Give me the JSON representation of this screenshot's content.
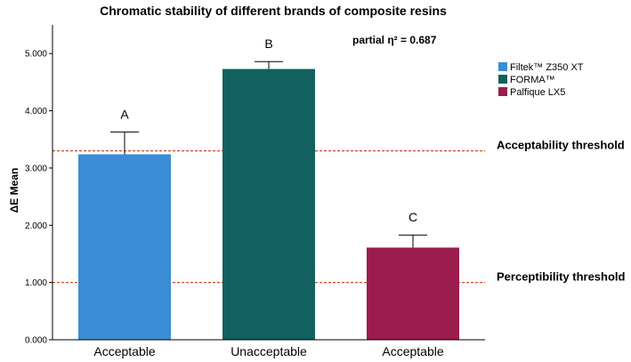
{
  "chart_data": {
    "type": "bar",
    "title": "Chromatic stability of different brands of composite resins",
    "annotation": "partial η² = 0.687",
    "ylabel": "ΔE Mean",
    "xlabel": "",
    "ylim": [
      0,
      5.5
    ],
    "yticks": [
      "0.000",
      "1.000",
      "2.000",
      "3.000",
      "4.000",
      "5.000"
    ],
    "ytick_values": [
      0,
      1,
      2,
      3,
      4,
      5
    ],
    "grid": false,
    "legend_position": "right",
    "categories": [
      "Acceptable",
      "Unacceptable",
      "Acceptable"
    ],
    "series": [
      {
        "name": "Filtek™ Z350 XT",
        "value": 3.24,
        "error": 0.39,
        "group_letter": "A",
        "color": "#3a8dd4"
      },
      {
        "name": "FORMA™",
        "value": 4.73,
        "error": 0.13,
        "group_letter": "B",
        "color": "#12605f"
      },
      {
        "name": "Palfique LX5",
        "value": 1.61,
        "error": 0.22,
        "group_letter": "C",
        "color": "#9b1c4d"
      }
    ],
    "thresholds": [
      {
        "label": "Acceptability threshold",
        "value": 3.3,
        "color": "#d24a2a"
      },
      {
        "label": "Perceptibility threshold",
        "value": 1.0,
        "color": "#d24a2a"
      }
    ]
  }
}
